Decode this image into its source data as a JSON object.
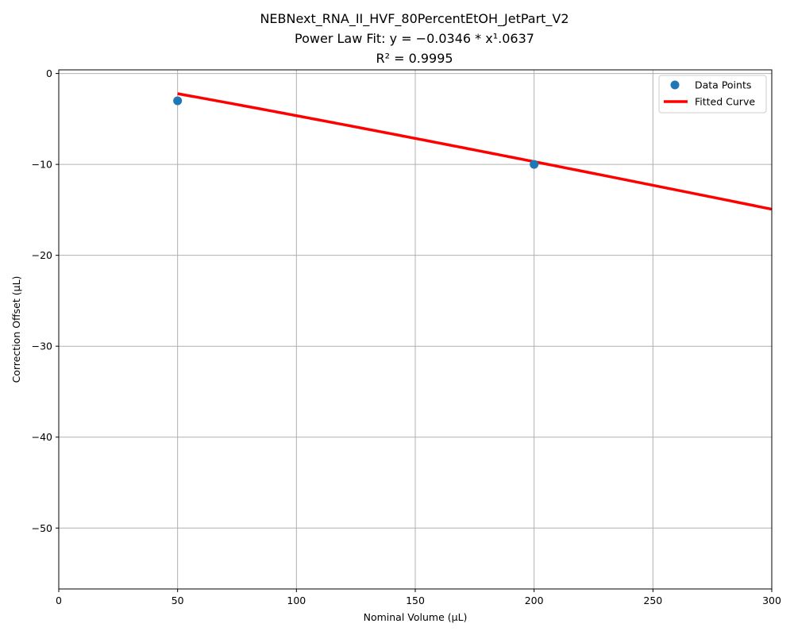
{
  "chart_data": {
    "type": "scatter",
    "title_lines": [
      "NEBNext_RNA_II_HVF_80PercentEtOH_JetPart_V2",
      "Power Law Fit: y = −0.0346 * x¹.0637",
      "R² = 0.9995"
    ],
    "xlabel": "Nominal Volume (µL)",
    "ylabel": "Correction Offset (µL)",
    "xlim": [
      0,
      300
    ],
    "ylim": [
      -56.7,
      0.4
    ],
    "xticks": [
      0,
      50,
      100,
      150,
      200,
      250,
      300
    ],
    "yticks": [
      0,
      -10,
      -20,
      -30,
      -40,
      -50
    ],
    "grid": true,
    "legend_position": "top-right",
    "series": [
      {
        "name": "Data Points",
        "kind": "scatter",
        "color": "#1f77b4",
        "x": [
          50,
          200
        ],
        "y": [
          -3.0,
          -10.0
        ]
      },
      {
        "name": "Fitted Curve",
        "kind": "line",
        "color": "#ff0000",
        "fit": {
          "a": -0.0346,
          "b": 1.0637,
          "x_start": 50,
          "x_end": 300
        }
      }
    ]
  }
}
